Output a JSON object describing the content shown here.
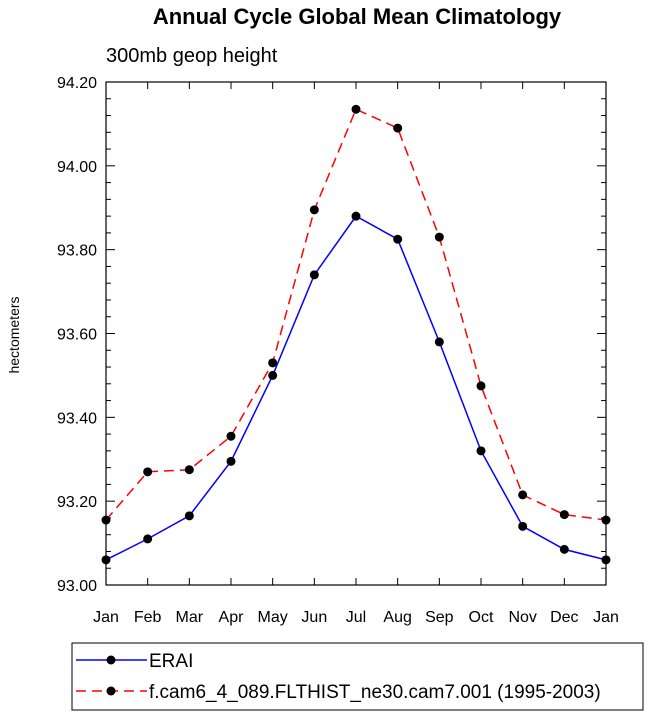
{
  "chart_data": {
    "type": "line",
    "title": "Annual Cycle Global Mean Climatology",
    "subtitle": "300mb geop height",
    "xlabel": "",
    "ylabel": "hectometers",
    "ylim": [
      93.0,
      94.2
    ],
    "y_ticks": [
      "93.00",
      "93.20",
      "93.40",
      "93.60",
      "93.80",
      "94.00",
      "94.20"
    ],
    "categories": [
      "Jan",
      "Feb",
      "Mar",
      "Apr",
      "May",
      "Jun",
      "Jul",
      "Aug",
      "Sep",
      "Oct",
      "Nov",
      "Dec",
      "Jan"
    ],
    "grid": false,
    "legend_position": "bottom",
    "series": [
      {
        "name": "ERAI",
        "color": "#0000ff",
        "dash": "solid",
        "values": [
          93.06,
          93.11,
          93.165,
          93.295,
          93.5,
          93.74,
          93.88,
          93.825,
          93.58,
          93.32,
          93.14,
          93.085,
          93.06
        ]
      },
      {
        "name": "f.cam6_4_089.FLTHIST_ne30.cam7.001 (1995-2003)",
        "color": "#ff0000",
        "dash": "dashed",
        "values": [
          93.155,
          93.27,
          93.275,
          93.355,
          93.53,
          93.895,
          94.135,
          94.09,
          93.83,
          93.475,
          93.215,
          93.168,
          93.155
        ]
      }
    ]
  }
}
